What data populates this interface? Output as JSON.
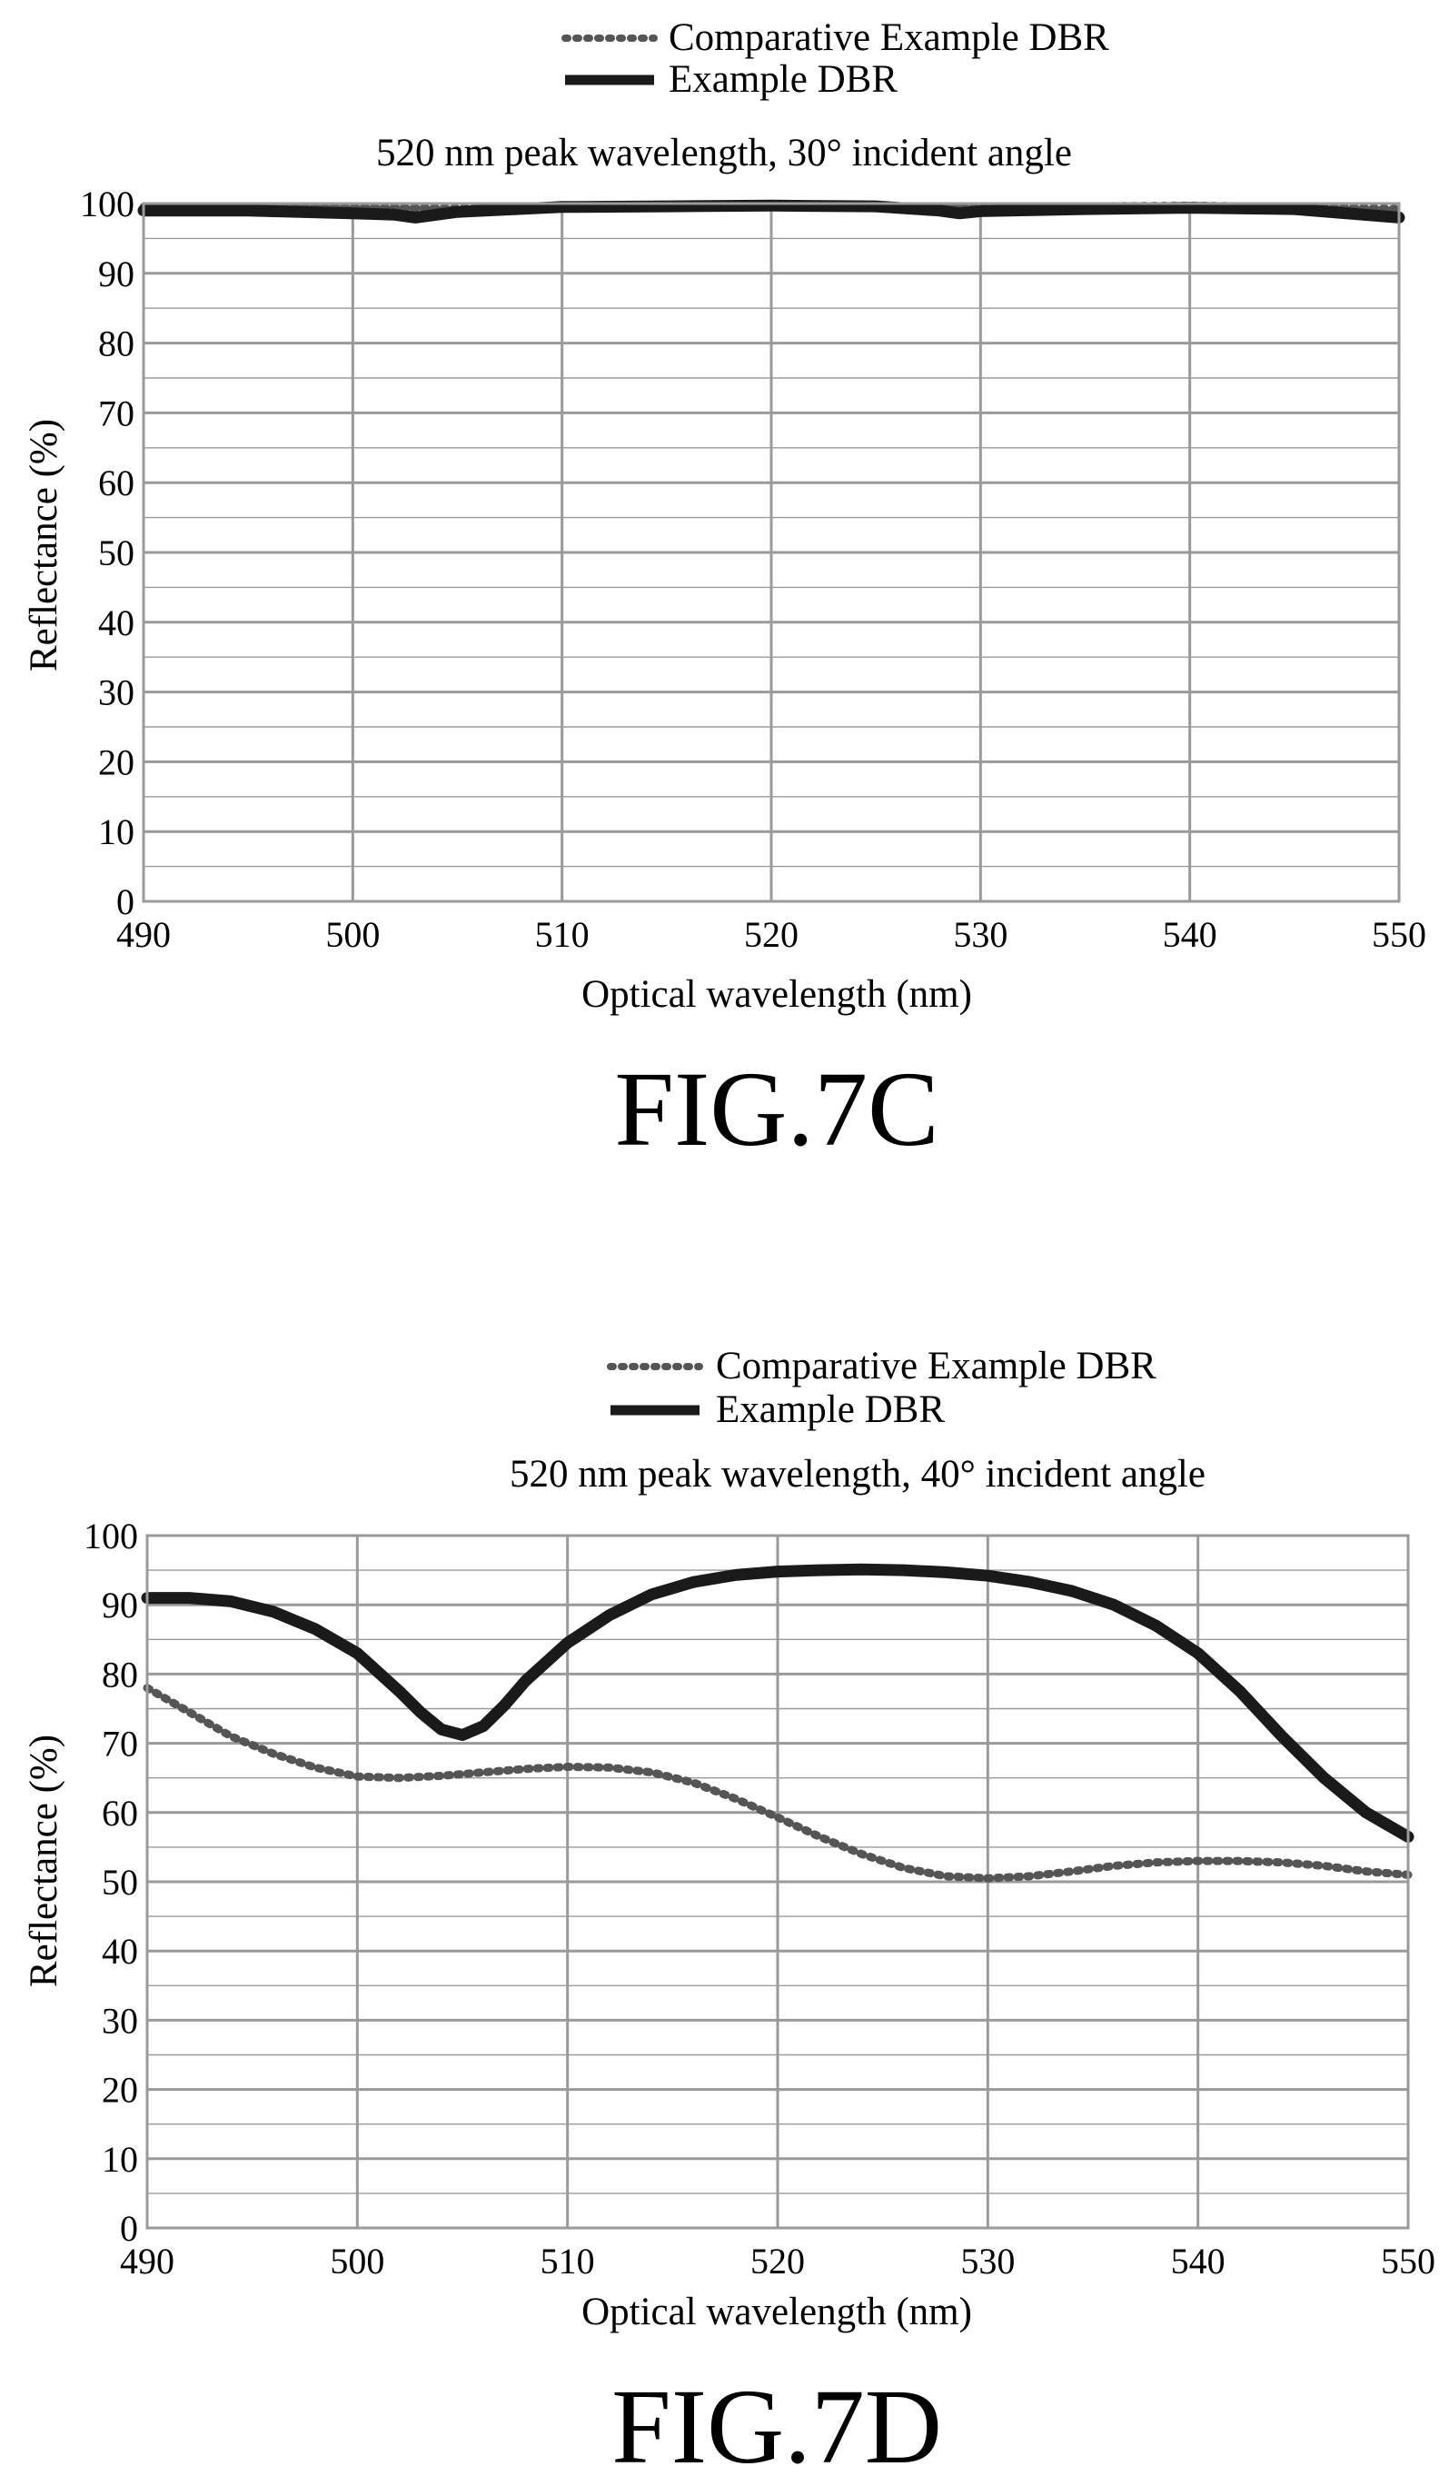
{
  "figures": [
    {
      "figure_label": "FIG.7C",
      "legend": [
        {
          "label": "Comparative Example DBR",
          "style": "dotted"
        },
        {
          "label": "Example DBR",
          "style": "solid"
        }
      ]
    },
    {
      "figure_label": "FIG.7D",
      "legend": [
        {
          "label": "Comparative Example DBR",
          "style": "dotted"
        },
        {
          "label": "Example DBR",
          "style": "solid"
        }
      ]
    }
  ],
  "colors": {
    "line": "#1a1a1a",
    "grid": "#9a9a9a",
    "dotted": "#555555"
  },
  "chart_data": [
    {
      "type": "line",
      "title": "520 nm peak wavelength, 30° incident angle",
      "xlabel": "Optical wavelength (nm)",
      "ylabel": "Reflectance (%)",
      "xlim": [
        490,
        550
      ],
      "ylim": [
        0,
        100
      ],
      "xticks": [
        490,
        500,
        510,
        520,
        530,
        540,
        550
      ],
      "yticks": [
        0,
        10,
        20,
        30,
        40,
        50,
        60,
        70,
        80,
        90,
        100
      ],
      "grid": true,
      "legend_position": "top-right",
      "series": [
        {
          "name": "Comparative Example DBR",
          "style": "dotted",
          "x": [
            490,
            495,
            500,
            505,
            510,
            515,
            520,
            525,
            530,
            535,
            540,
            545,
            550
          ],
          "y": [
            99.5,
            99.5,
            99.4,
            99.3,
            99.6,
            99.7,
            99.8,
            99.7,
            99.4,
            99.6,
            99.7,
            99.5,
            99.2
          ]
        },
        {
          "name": "Example DBR",
          "style": "solid",
          "x": [
            490,
            495,
            500,
            502,
            503,
            505,
            510,
            515,
            520,
            525,
            528,
            529,
            530,
            535,
            540,
            545,
            550
          ],
          "y": [
            99.0,
            99.0,
            98.6,
            98.4,
            98.0,
            98.8,
            99.5,
            99.6,
            99.7,
            99.6,
            99.0,
            98.6,
            98.9,
            99.2,
            99.4,
            99.2,
            98.0
          ]
        }
      ]
    },
    {
      "type": "line",
      "title": "520 nm peak wavelength, 40° incident angle",
      "xlabel": "Optical wavelength (nm)",
      "ylabel": "Reflectance (%)",
      "xlim": [
        490,
        550
      ],
      "ylim": [
        0,
        100
      ],
      "xticks": [
        490,
        500,
        510,
        520,
        530,
        540,
        550
      ],
      "yticks": [
        0,
        10,
        20,
        30,
        40,
        50,
        60,
        70,
        80,
        90,
        100
      ],
      "grid": true,
      "legend_position": "top-right",
      "series": [
        {
          "name": "Comparative Example DBR",
          "style": "dotted",
          "x": [
            490,
            492,
            494,
            496,
            498,
            500,
            502,
            504,
            506,
            508,
            510,
            512,
            514,
            516,
            518,
            520,
            522,
            524,
            526,
            528,
            530,
            532,
            534,
            536,
            538,
            540,
            542,
            544,
            546,
            548,
            550
          ],
          "y": [
            78,
            74.5,
            71,
            68.5,
            66.5,
            65.2,
            65,
            65.3,
            65.8,
            66.3,
            66.6,
            66.5,
            65.8,
            64.3,
            62,
            59.3,
            56.5,
            54,
            52,
            50.8,
            50.5,
            50.8,
            51.5,
            52.3,
            52.8,
            53,
            53,
            52.8,
            52.3,
            51.5,
            51
          ]
        },
        {
          "name": "Example DBR",
          "style": "solid",
          "x": [
            490,
            492,
            494,
            496,
            498,
            500,
            502,
            503,
            504,
            505,
            506,
            507,
            508,
            510,
            512,
            514,
            516,
            518,
            520,
            522,
            524,
            526,
            528,
            530,
            532,
            534,
            536,
            538,
            540,
            542,
            544,
            546,
            548,
            550
          ],
          "y": [
            91,
            91,
            90.5,
            89,
            86.5,
            83,
            77.5,
            74.5,
            72,
            71.2,
            72.5,
            75.5,
            79,
            84.5,
            88.5,
            91.5,
            93.3,
            94.3,
            94.8,
            95,
            95.1,
            95,
            94.7,
            94.2,
            93.3,
            92,
            90,
            87,
            83,
            77.5,
            71,
            65,
            60,
            56.5
          ]
        }
      ]
    }
  ]
}
